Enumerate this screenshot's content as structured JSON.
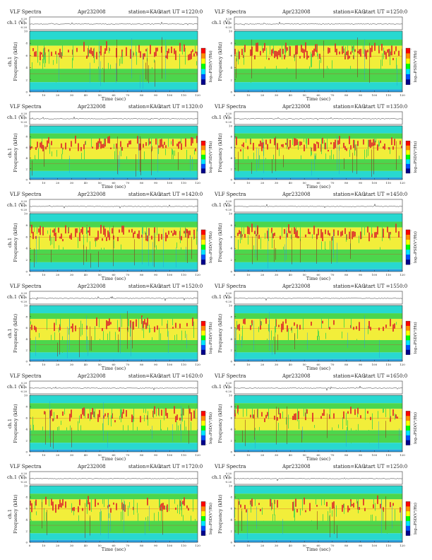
{
  "page": {
    "title": "VLF Spectra",
    "date": "Apr232008",
    "station": "station=KAG",
    "start_prefix": "start  UT  ="
  },
  "colors": {
    "spectrogram_low": "#2aa0e0",
    "spectrogram_cyan": "#28d8d0",
    "spectrogram_green": "#4cd64c",
    "spectrogram_yellow": "#f2ee3a",
    "spectrogram_red": "#dd2b2b",
    "colorbar": [
      "#ff0000",
      "#ff8c00",
      "#ffff00",
      "#00ff00",
      "#00e5ff",
      "#0050ff",
      "#00008b"
    ]
  },
  "chart_data": [
    {
      "type": "heatmap",
      "start_ut": "1220:0",
      "channel_label": "ch.1 (V)",
      "channel_ticks": [
        "0.20",
        "0.00",
        "-0.20"
      ],
      "ylabel": "Frequency (kHz)",
      "ylabel_channel": "ch.1",
      "yticks": [
        "0",
        "2",
        "4",
        "6",
        "8",
        "10"
      ],
      "ylim": [
        0,
        10
      ],
      "xlabel": "Time (sec)",
      "xticks": [
        "0",
        "10",
        "20",
        "30",
        "40",
        "50",
        "60",
        "70",
        "80",
        "90",
        "100",
        "110",
        "120"
      ],
      "xlim": [
        0,
        120
      ],
      "colorbar_label": "log₁₀PSD(V²/Hz)",
      "colorbar_ticks": [
        "-",
        "-"
      ]
    },
    {
      "type": "heatmap",
      "start_ut": "1250:0",
      "channel_label": "ch.1 (V)",
      "channel_ticks": [
        "0.20",
        "0.00",
        "-0.20"
      ],
      "ylabel": "Frequency (kHz)",
      "ylabel_channel": "",
      "yticks": [
        "0",
        "2",
        "4",
        "6",
        "8",
        "10"
      ],
      "ylim": [
        0,
        10
      ],
      "xlabel": "Time (sec)",
      "xticks": [
        "0",
        "10",
        "20",
        "30",
        "40",
        "50",
        "60",
        "70",
        "80",
        "90",
        "100",
        "110",
        "120"
      ],
      "xlim": [
        0,
        120
      ],
      "colorbar_label": "log₁₀PSD(V²/Hz)",
      "colorbar_ticks": [
        "-",
        "-"
      ]
    },
    {
      "type": "heatmap",
      "start_ut": "1320:0",
      "channel_label": "ch.1 (V)",
      "channel_ticks": [
        "0.20",
        "0.00",
        "-0.20"
      ],
      "ylabel": "Frequency (kHz)",
      "ylabel_channel": "ch.1",
      "yticks": [
        "0",
        "2",
        "4",
        "6",
        "8",
        "10"
      ],
      "ylim": [
        0,
        10
      ],
      "xlabel": "Time (sec)",
      "xticks": [
        "0",
        "10",
        "20",
        "30",
        "40",
        "50",
        "60",
        "70",
        "80",
        "90",
        "100",
        "110",
        "120"
      ],
      "xlim": [
        0,
        120
      ],
      "colorbar_label": "log₁₀PSD(V²/Hz)",
      "colorbar_ticks": [
        "-",
        "-"
      ]
    },
    {
      "type": "heatmap",
      "start_ut": "1350:0",
      "channel_label": "ch.1 (V)",
      "channel_ticks": [
        "0.20",
        "0.00",
        "-0.20"
      ],
      "ylabel": "Frequency (kHz)",
      "ylabel_channel": "",
      "yticks": [
        "0",
        "2",
        "4",
        "6",
        "8",
        "10"
      ],
      "ylim": [
        0,
        10
      ],
      "xlabel": "Time (sec)",
      "xticks": [
        "0",
        "10",
        "20",
        "30",
        "40",
        "50",
        "60",
        "70",
        "80",
        "90",
        "100",
        "110",
        "120"
      ],
      "xlim": [
        0,
        120
      ],
      "colorbar_label": "log₁₀PSD(V²/Hz)",
      "colorbar_ticks": [
        "-",
        "-"
      ]
    },
    {
      "type": "heatmap",
      "start_ut": "1420:0",
      "channel_label": "ch.1 (V)",
      "channel_ticks": [
        "0.20",
        "0.00",
        "-0.20"
      ],
      "ylabel": "Frequency (kHz)",
      "ylabel_channel": "ch.1",
      "yticks": [
        "0",
        "2",
        "4",
        "6",
        "8",
        "10"
      ],
      "ylim": [
        0,
        10
      ],
      "xlabel": "Time (sec)",
      "xticks": [
        "0",
        "10",
        "20",
        "30",
        "40",
        "50",
        "60",
        "70",
        "80",
        "90",
        "100",
        "110",
        "120"
      ],
      "xlim": [
        0,
        120
      ],
      "colorbar_label": "log₁₀PSD(V²/Hz)",
      "colorbar_ticks": [
        "-",
        "-"
      ]
    },
    {
      "type": "heatmap",
      "start_ut": "1450:0",
      "channel_label": "ch.1 (V)",
      "channel_ticks": [
        "0.20",
        "0.00",
        "-0.20"
      ],
      "ylabel": "Frequency (kHz)",
      "ylabel_channel": "",
      "yticks": [
        "0",
        "2",
        "4",
        "6",
        "8",
        "10"
      ],
      "ylim": [
        0,
        10
      ],
      "xlabel": "Time (sec)",
      "xticks": [
        "0",
        "10",
        "20",
        "30",
        "40",
        "50",
        "60",
        "70",
        "80",
        "90",
        "100",
        "110",
        "120"
      ],
      "xlim": [
        0,
        120
      ],
      "colorbar_label": "log₁₀PSD(V²/Hz)",
      "colorbar_ticks": [
        "-",
        "-"
      ]
    },
    {
      "type": "heatmap",
      "start_ut": "1520:0",
      "channel_label": "ch.1 (V)",
      "channel_ticks": [
        "0.20",
        "0.00",
        "-0.20"
      ],
      "ylabel": "Frequency (kHz)",
      "ylabel_channel": "ch.1",
      "yticks": [
        "0",
        "2",
        "4",
        "6",
        "8",
        "10"
      ],
      "ylim": [
        0,
        10
      ],
      "xlabel": "Time (sec)",
      "xticks": [
        "0",
        "10",
        "20",
        "30",
        "40",
        "50",
        "60",
        "70",
        "80",
        "90",
        "100",
        "110",
        "120"
      ],
      "xlim": [
        0,
        120
      ],
      "colorbar_label": "log₁₀PSD(V²/Hz)",
      "colorbar_ticks": [
        "-",
        "-"
      ]
    },
    {
      "type": "heatmap",
      "start_ut": "1550:0",
      "channel_label": "ch.1 (V)",
      "channel_ticks": [
        "0.20",
        "0.00",
        "-0.20"
      ],
      "ylabel": "Frequency (kHz)",
      "ylabel_channel": "",
      "yticks": [
        "0",
        "2",
        "4",
        "6",
        "8",
        "10"
      ],
      "ylim": [
        0,
        10
      ],
      "xlabel": "Time (sec)",
      "xticks": [
        "0",
        "10",
        "20",
        "30",
        "40",
        "50",
        "60",
        "70",
        "80",
        "90",
        "100",
        "110",
        "120"
      ],
      "xlim": [
        0,
        120
      ],
      "colorbar_label": "log₁₀PSD(V²/Hz)",
      "colorbar_ticks": [
        "-",
        "-"
      ]
    },
    {
      "type": "heatmap",
      "start_ut": "1620:0",
      "channel_label": "ch.1 (V)",
      "channel_ticks": [
        "0.20",
        "0.00",
        "-0.20"
      ],
      "ylabel": "Frequency (kHz)",
      "ylabel_channel": "ch.1",
      "yticks": [
        "0",
        "2",
        "4",
        "6",
        "8",
        "10"
      ],
      "ylim": [
        0,
        10
      ],
      "xlabel": "Time (sec)",
      "xticks": [
        "0",
        "10",
        "20",
        "30",
        "40",
        "50",
        "60",
        "70",
        "80",
        "90",
        "100",
        "110",
        "120"
      ],
      "xlim": [
        0,
        120
      ],
      "colorbar_label": "log₁₀PSD(V²/Hz)",
      "colorbar_ticks": [
        "-",
        "-"
      ]
    },
    {
      "type": "heatmap",
      "start_ut": "1650:0",
      "channel_label": "ch.1 (V)",
      "channel_ticks": [
        "0.20",
        "0.00",
        "-0.20"
      ],
      "ylabel": "Frequency (kHz)",
      "ylabel_channel": "",
      "yticks": [
        "0",
        "2",
        "4",
        "6",
        "8",
        "10"
      ],
      "ylim": [
        0,
        10
      ],
      "xlabel": "Time (sec)",
      "xticks": [
        "0",
        "10",
        "20",
        "30",
        "40",
        "50",
        "60",
        "70",
        "80",
        "90",
        "100",
        "110",
        "120"
      ],
      "xlim": [
        0,
        120
      ],
      "colorbar_label": "log₁₀PSD(V²/Hz)",
      "colorbar_ticks": [
        "-",
        "-"
      ]
    },
    {
      "type": "heatmap",
      "start_ut": "1720:0",
      "channel_label": "ch.1 (V)",
      "channel_ticks": [
        "0.20",
        "0.00",
        "-0.20"
      ],
      "ylabel": "Frequency (kHz)",
      "ylabel_channel": "ch.1",
      "yticks": [
        "0",
        "2",
        "4",
        "6",
        "8",
        "10"
      ],
      "ylim": [
        0,
        10
      ],
      "xlabel": "Time (sec)",
      "xticks": [
        "0",
        "10",
        "20",
        "30",
        "40",
        "50",
        "60",
        "70",
        "80",
        "90",
        "100",
        "110",
        "120"
      ],
      "xlim": [
        0,
        120
      ],
      "colorbar_label": "log₁₀PSD(V²/Hz)",
      "colorbar_ticks": [
        "-",
        "-"
      ]
    },
    {
      "type": "heatmap",
      "start_ut": "1250:0",
      "channel_label": "ch.1 (V)",
      "channel_ticks": [
        "0.20",
        "0.00",
        "-0.20"
      ],
      "ylabel": "Frequency (kHz)",
      "ylabel_channel": "",
      "yticks": [
        "0",
        "2",
        "4",
        "6",
        "8",
        "10"
      ],
      "ylim": [
        0,
        10
      ],
      "xlabel": "Time (sec)",
      "xticks": [
        "0",
        "10",
        "20",
        "30",
        "40",
        "50",
        "60",
        "70",
        "80",
        "90",
        "100",
        "110",
        "120"
      ],
      "xlim": [
        0,
        120
      ],
      "colorbar_label": "log₁₀PSD(V²/Hz)",
      "colorbar_ticks": [
        "-",
        "-"
      ]
    }
  ]
}
